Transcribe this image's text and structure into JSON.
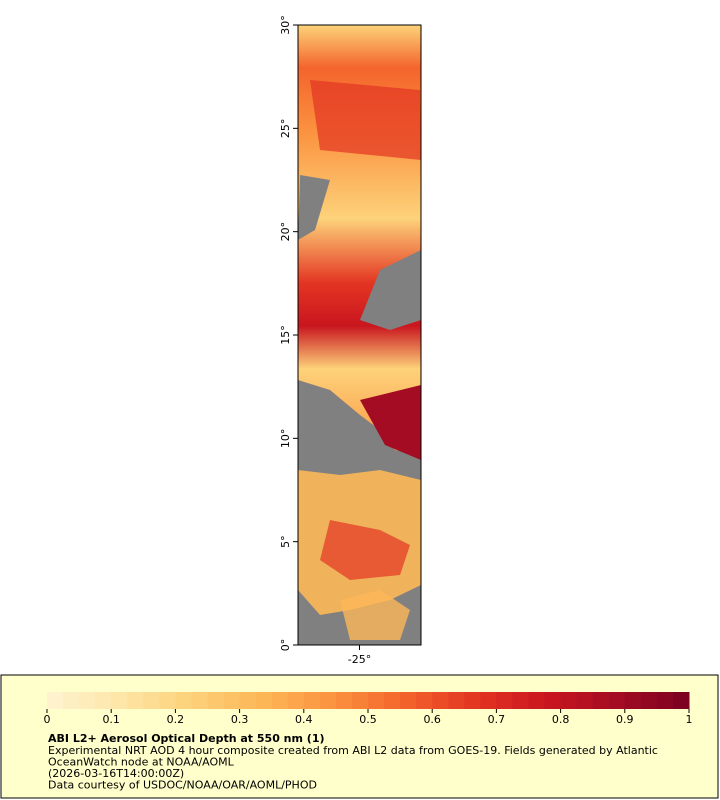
{
  "chart_data": {
    "type": "map",
    "xlim": [
      -28,
      -22
    ],
    "ylim": [
      0,
      30
    ],
    "xticks": [
      {
        "value": -25,
        "label": "-25°"
      }
    ],
    "yticks": [
      {
        "value": 0,
        "label": "0°"
      },
      {
        "value": 5,
        "label": "5°"
      },
      {
        "value": 10,
        "label": "10°"
      },
      {
        "value": 15,
        "label": "15°"
      },
      {
        "value": 20,
        "label": "20°"
      },
      {
        "value": 25,
        "label": "25°"
      },
      {
        "value": 30,
        "label": "30°"
      }
    ],
    "colorbar": {
      "lim": [
        0,
        1
      ],
      "ticks": [
        0,
        0.1,
        0.2,
        0.3,
        0.4,
        0.5,
        0.6,
        0.7,
        0.8,
        0.9,
        1
      ],
      "colors": [
        "#fff3d0",
        "#fde6a8",
        "#fdd27a",
        "#fcb757",
        "#fb9340",
        "#f4642c",
        "#e33522",
        "#c9161f",
        "#a30c22",
        "#7a0021"
      ]
    },
    "legend": {
      "title": "ABI L2+ Aerosol Optical Depth at 550 nm (1)",
      "lines": [
        "Experimental NRT AOD 4 hour composite created from ABI L2 data from GOES-19. Fields generated by Atlantic",
        "OceanWatch node at NOAA/AOML",
        "(2026-03-16T14:00:00Z)",
        "Data courtesy of USDOC/NOAA/OAR/AOML/PHOD"
      ]
    }
  }
}
